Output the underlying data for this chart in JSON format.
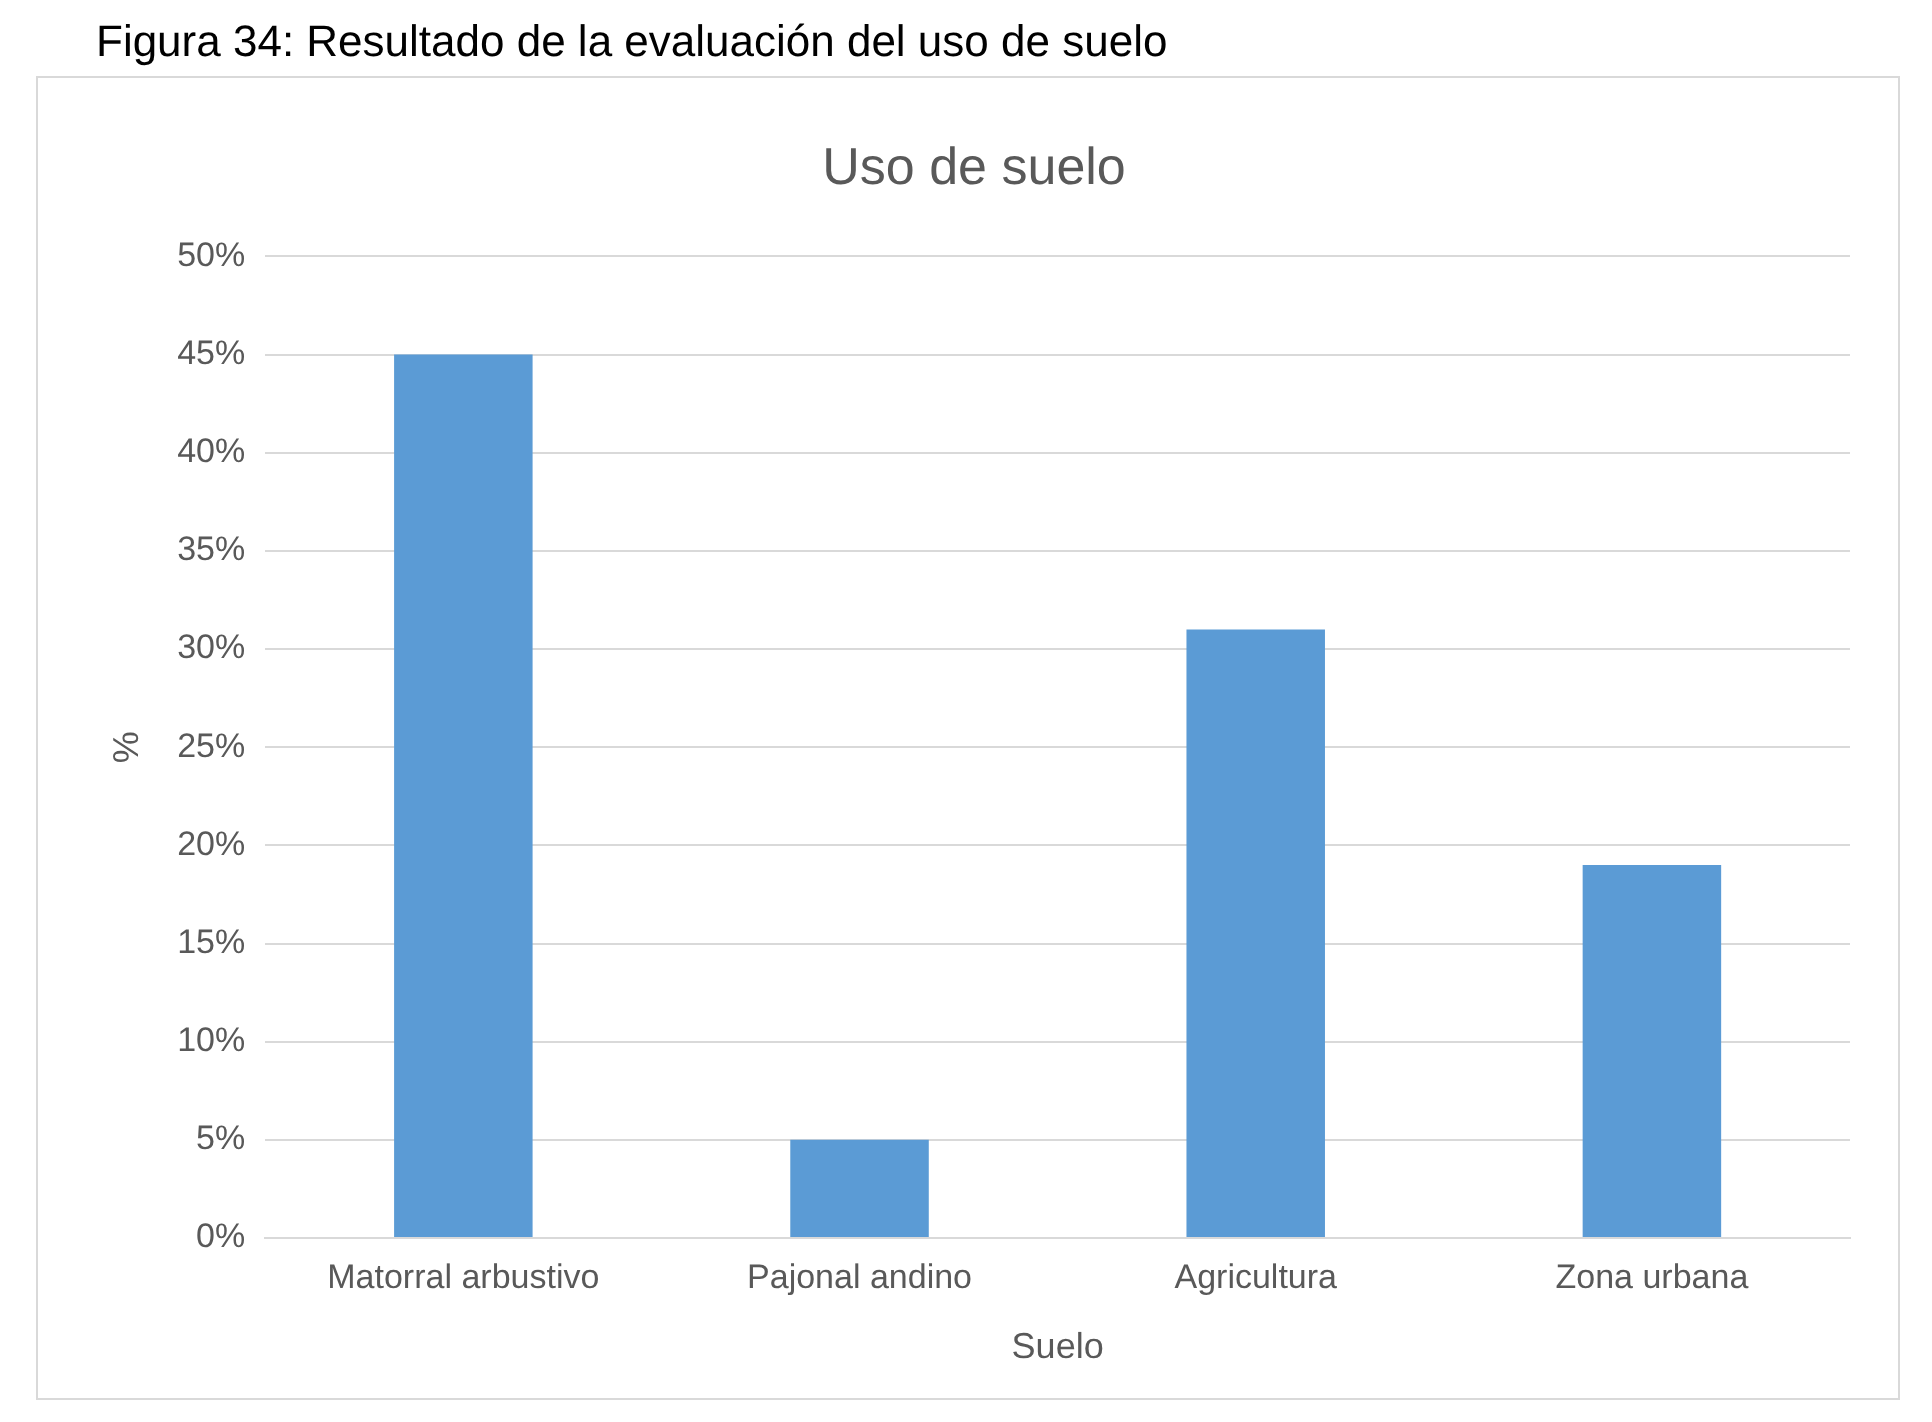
{
  "chart_data": {
    "type": "bar",
    "title": "Uso de suelo",
    "xlabel": "Suelo",
    "ylabel": "%",
    "annotations": [
      "Figura 34: Resultado de la evaluación del uso de suelo"
    ],
    "categories": [
      "Matorral arbustivo",
      "Pajonal andino",
      "Agricultura",
      "Zona urbana"
    ],
    "values": [
      45,
      5,
      31,
      19
    ],
    "color": "#5b9bd5",
    "ylim": [
      0,
      50
    ],
    "yticks": [
      {
        "value": 0,
        "label": "0%"
      },
      {
        "value": 5,
        "label": "5%"
      },
      {
        "value": 10,
        "label": "10%"
      },
      {
        "value": 15,
        "label": "15%"
      },
      {
        "value": 20,
        "label": "20%"
      },
      {
        "value": 25,
        "label": "25%"
      },
      {
        "value": 30,
        "label": "30%"
      },
      {
        "value": 35,
        "label": "35%"
      },
      {
        "value": 40,
        "label": "40%"
      },
      {
        "value": 45,
        "label": "45%"
      },
      {
        "value": 50,
        "label": "50%"
      }
    ],
    "grid": "y",
    "legend": false
  }
}
